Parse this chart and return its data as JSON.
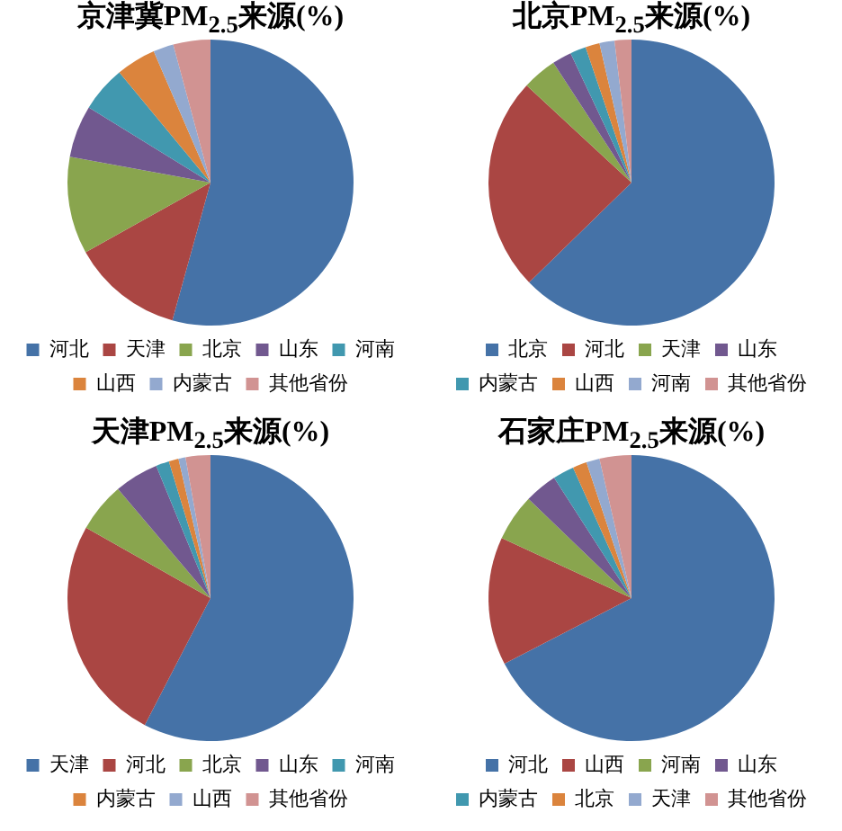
{
  "chart_data": [
    {
      "type": "pie",
      "title": "京津冀PM$_{2.5}$来源(%)",
      "categories": [
        "河北",
        "天津",
        "北京",
        "山东",
        "河南",
        "山西",
        "内蒙古",
        "其他省份"
      ],
      "values": [
        54.3,
        12.6,
        11.0,
        5.9,
        5.2,
        4.5,
        2.3,
        4.2
      ],
      "colors": [
        "#4572a7",
        "#aa4643",
        "#89a54e",
        "#71588f",
        "#4198af",
        "#db843d",
        "#93a9cf",
        "#d19392"
      ],
      "legend": "bottom"
    },
    {
      "type": "pie",
      "title": "北京PM$_{2.5}$来源(%)",
      "categories": [
        "北京",
        "河北",
        "天津",
        "山东",
        "内蒙古",
        "山西",
        "河南",
        "其他省份"
      ],
      "values": [
        62.7,
        24.2,
        3.9,
        2.2,
        1.8,
        1.6,
        1.7,
        1.9
      ],
      "colors": [
        "#4572a7",
        "#aa4643",
        "#89a54e",
        "#71588f",
        "#4198af",
        "#db843d",
        "#93a9cf",
        "#d19392"
      ],
      "legend": "bottom"
    },
    {
      "type": "pie",
      "title": "天津PM$_{2.5}$来源(%)",
      "categories": [
        "天津",
        "河北",
        "北京",
        "山东",
        "河南",
        "内蒙古",
        "山西",
        "其他省份"
      ],
      "values": [
        57.6,
        25.6,
        5.6,
        5.0,
        1.5,
        1.1,
        0.8,
        2.8
      ],
      "colors": [
        "#4572a7",
        "#aa4643",
        "#89a54e",
        "#71588f",
        "#4198af",
        "#db843d",
        "#93a9cf",
        "#d19392"
      ],
      "legend": "bottom"
    },
    {
      "type": "pie",
      "title": "石家庄PM$_{2.5}$来源(%)",
      "categories": [
        "河北",
        "山西",
        "河南",
        "山东",
        "内蒙古",
        "北京",
        "天津",
        "其他省份"
      ],
      "values": [
        67.4,
        14.5,
        5.3,
        3.7,
        2.4,
        1.6,
        1.5,
        3.6
      ],
      "colors": [
        "#4572a7",
        "#aa4643",
        "#89a54e",
        "#71588f",
        "#4198af",
        "#db843d",
        "#93a9cf",
        "#d19392"
      ],
      "legend": "bottom"
    }
  ]
}
